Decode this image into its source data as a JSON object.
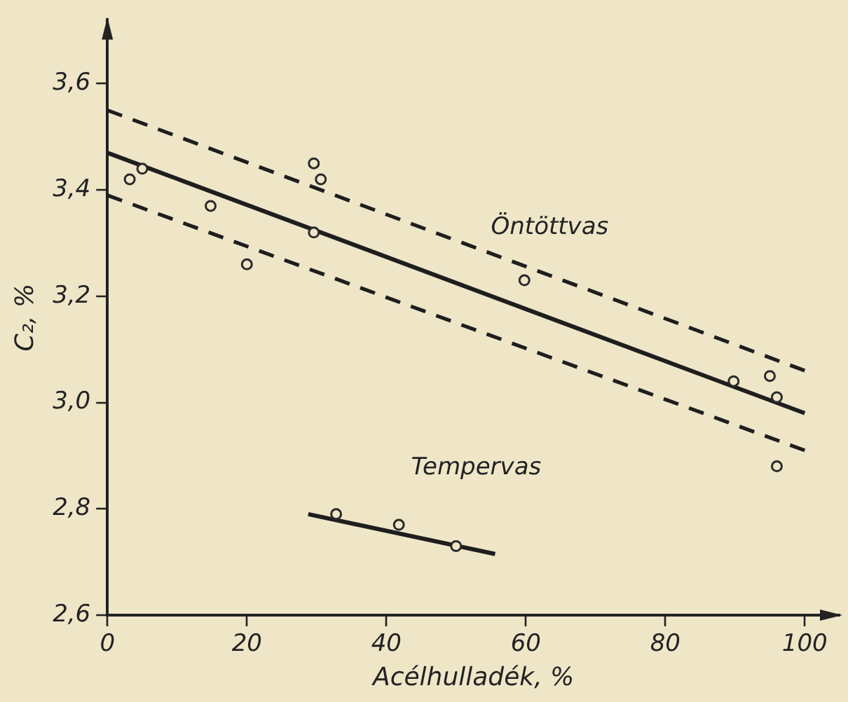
{
  "chart_data": {
    "type": "scatter",
    "xlabel": "Acélhulladék, %",
    "ylabel": "C₂, %",
    "xlim": [
      0,
      105
    ],
    "ylim": [
      2.6,
      3.72
    ],
    "xticks": [
      0,
      20,
      40,
      60,
      80,
      100
    ],
    "yticks": [
      {
        "value": 2.6,
        "label": "2,6"
      },
      {
        "value": 2.8,
        "label": "2,8"
      },
      {
        "value": 3.0,
        "label": "3,0"
      },
      {
        "value": 3.2,
        "label": "3,2"
      },
      {
        "value": 3.4,
        "label": "3,4"
      },
      {
        "value": 3.6,
        "label": "3,6"
      }
    ],
    "series": [
      {
        "marker": "circle",
        "color": "#2a2a2a",
        "x": [
          3.2,
          5,
          14.8,
          20,
          29.6,
          30.6,
          29.6,
          59.8,
          89.8,
          95,
          96,
          96
        ],
        "values": [
          3.42,
          3.44,
          3.37,
          3.26,
          3.45,
          3.42,
          3.32,
          3.23,
          3.04,
          3.05,
          3.01,
          2.88
        ]
      },
      {
        "marker": "circle",
        "color": "#2a2a2a",
        "x": [
          32.8,
          41.8,
          50
        ],
        "values": [
          2.79,
          2.77,
          2.73
        ]
      },
      {
        "type": "line",
        "name": "Öntöttvas",
        "marker": "none",
        "line_style": "solid",
        "color": "#1e1e1e",
        "x": [
          0,
          100
        ],
        "values": [
          3.47,
          2.98
        ]
      },
      {
        "type": "line",
        "marker": "none",
        "line_style": "dashed",
        "color": "#1e1e1e",
        "x": [
          0,
          100
        ],
        "values": [
          3.55,
          3.06
        ]
      },
      {
        "type": "line",
        "marker": "none",
        "line_style": "dashed",
        "color": "#1e1e1e",
        "x": [
          0,
          100
        ],
        "values": [
          3.39,
          2.91
        ]
      },
      {
        "type": "line",
        "name": "Tempervas",
        "marker": "none",
        "line_style": "solid",
        "color": "#1e1e1e",
        "x": [
          28.8,
          55.6
        ],
        "values": [
          2.79,
          2.715
        ]
      }
    ]
  }
}
